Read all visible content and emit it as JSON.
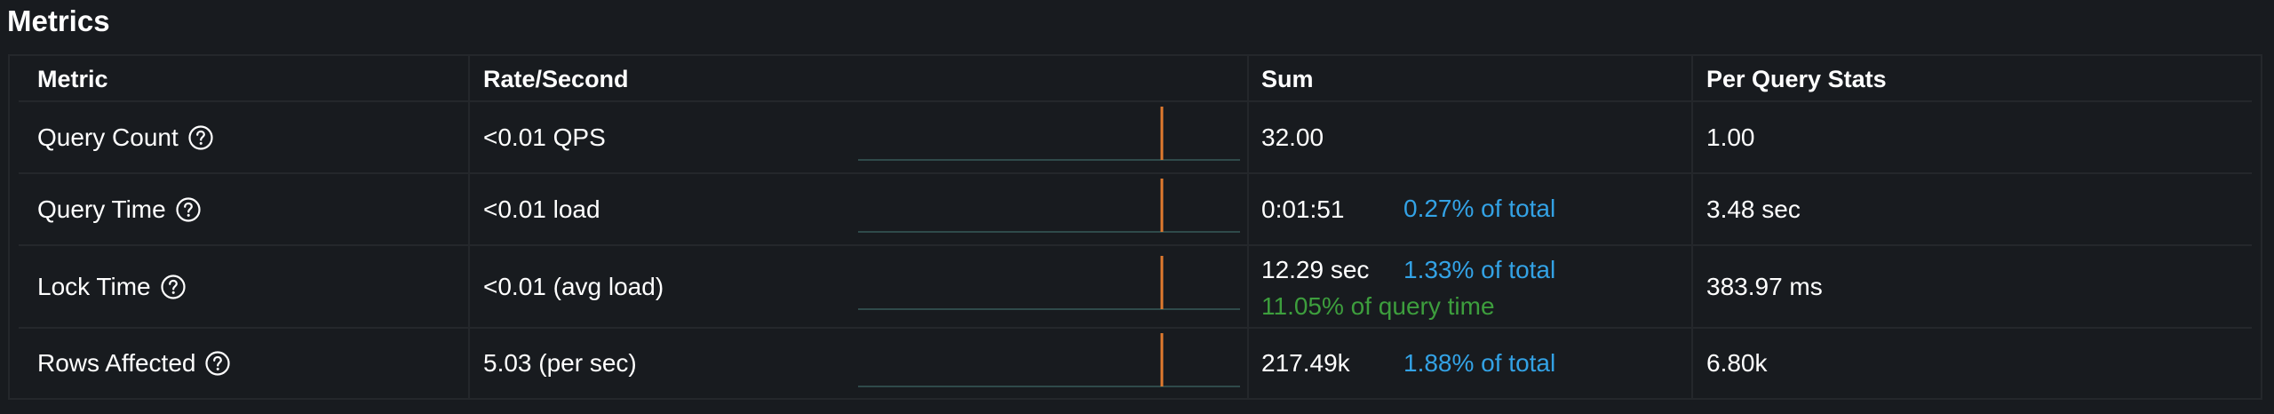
{
  "title": "Metrics",
  "headers": {
    "metric": "Metric",
    "rate": "Rate/Second",
    "sum": "Sum",
    "per_query": "Per Query Stats"
  },
  "rows": [
    {
      "metric": "Query Count",
      "rate": "<0.01 QPS",
      "sum": "32.00",
      "sum_pct": "",
      "sum_extra": "",
      "per_query": "1.00"
    },
    {
      "metric": "Query Time",
      "rate": "<0.01 load",
      "sum": "0:01:51",
      "sum_pct": "0.27% of total",
      "sum_extra": "",
      "per_query": "3.48 sec"
    },
    {
      "metric": "Lock Time",
      "rate": "<0.01 (avg load)",
      "sum": "12.29 sec",
      "sum_pct": "1.33% of total",
      "sum_extra": "11.05% of query time",
      "per_query": "383.97 ms"
    },
    {
      "metric": "Rows Affected",
      "rate": "5.03 (per sec)",
      "sum": "217.49k",
      "sum_pct": "1.88% of total",
      "sum_extra": "",
      "per_query": "6.80k"
    }
  ],
  "icons": {
    "help": "question-circle-icon"
  },
  "colors": {
    "background": "#181b1f",
    "border": "#24272b",
    "text": "#ffffff",
    "percent_of_total": "#33a2e5",
    "percent_of_query_time": "#3d9e3d",
    "sparkline_spike": "#e07a2e",
    "sparkline_baseline": "#2f4a4a"
  }
}
